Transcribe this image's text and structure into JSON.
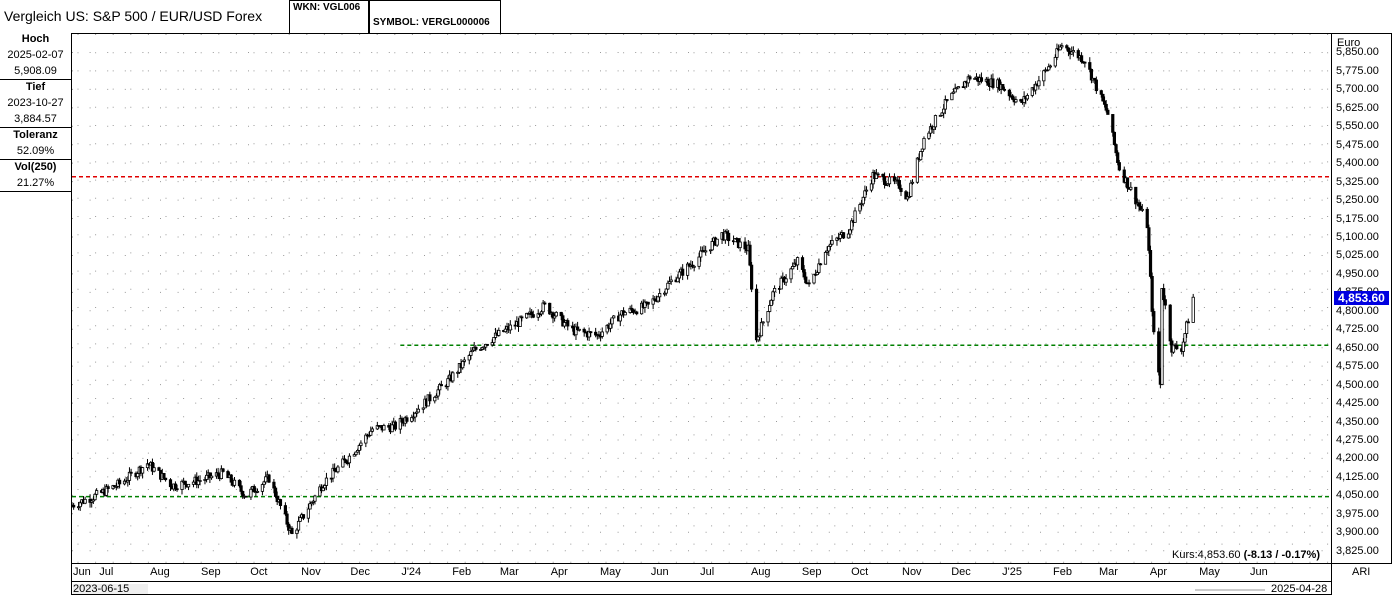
{
  "header": {
    "title": "Vergleich US: S&P 500 / EUR/USD Forex",
    "wkn": "WKN: VGL006",
    "symbol": "SYMBOL: VERGL000006"
  },
  "stats": [
    {
      "label": "Hoch",
      "values": [
        "2025-02-07",
        "5,908.09"
      ]
    },
    {
      "label": "Tief",
      "values": [
        "2023-10-27",
        "3,884.57"
      ]
    },
    {
      "label": "Toleranz",
      "values": [
        "52.09%"
      ]
    },
    {
      "label": "Vol(250)",
      "values": [
        "21.27%"
      ]
    }
  ],
  "footer": {
    "kurs_text": "Kurs:4,853.60 ",
    "kurs_change": "(-8.13 / -0.17%)",
    "start_date": "2023-06-15",
    "end_date": "2025-04-28",
    "ari_label": "ARI"
  },
  "chart_data": {
    "type": "candlestick",
    "yunit": "Euro",
    "ylim": [
      3775,
      5925
    ],
    "yticks": [
      3825,
      3900,
      3975,
      4050,
      4125,
      4200,
      4275,
      4350,
      4425,
      4500,
      4575,
      4650,
      4725,
      4800,
      4875,
      4950,
      5025,
      5100,
      5175,
      5250,
      5325,
      5400,
      5475,
      5550,
      5625,
      5700,
      5775,
      5850
    ],
    "ytick_labels": [
      "3,825.00",
      "3,900.00",
      "3,975.00",
      "4,050.00",
      "4,125.00",
      "4,200.00",
      "4,275.00",
      "4,350.00",
      "4,425.00",
      "4,500.00",
      "4,575.00",
      "4,650.00",
      "4,725.00",
      "4,800.00",
      "4,875.00",
      "4,950.00",
      "5,025.00",
      "5,100.00",
      "5,175.00",
      "5,250.00",
      "5,325.00",
      "5,400.00",
      "5,475.00",
      "5,550.00",
      "5,625.00",
      "5,700.00",
      "5,775.00",
      "5,850.00"
    ],
    "xlim": [
      "2023-06-15",
      "2025-06-15"
    ],
    "month_labels": [
      "Jun",
      "Jul",
      "Aug",
      "Sep",
      "Oct",
      "Nov",
      "Dec",
      "J'24",
      "Feb",
      "Mar",
      "Apr",
      "May",
      "Jun",
      "Jul",
      "Aug",
      "Sep",
      "Oct",
      "Nov",
      "Dec",
      "J'25",
      "Feb",
      "Mar",
      "Apr",
      "May",
      "Jun"
    ],
    "month_dates": [
      "2023-06-15",
      "2023-07-01",
      "2023-08-01",
      "2023-09-01",
      "2023-10-01",
      "2023-11-01",
      "2023-12-01",
      "2024-01-01",
      "2024-02-01",
      "2024-03-01",
      "2024-04-01",
      "2024-05-01",
      "2024-06-01",
      "2024-07-01",
      "2024-08-01",
      "2024-09-01",
      "2024-10-01",
      "2024-11-01",
      "2024-12-01",
      "2025-01-01",
      "2025-02-01",
      "2025-03-01",
      "2025-04-01",
      "2025-05-01",
      "2025-06-01"
    ],
    "reference_lines": [
      {
        "value": 5345,
        "color": "#e00000"
      },
      {
        "value": 4660,
        "color": "#008000",
        "from": "2024-01-01"
      },
      {
        "value": 4045,
        "color": "#008000"
      }
    ],
    "last_price": 4853.6,
    "last_price_label": "4,853.60",
    "series": [
      {
        "x": [
          "2023-06-15",
          "2023-06-30",
          "2023-07-15",
          "2023-07-31",
          "2023-08-15",
          "2023-08-31",
          "2023-09-15",
          "2023-09-29",
          "2023-10-13",
          "2023-10-27",
          "2023-11-15",
          "2023-11-30",
          "2023-12-15",
          "2023-12-29",
          "2024-01-15",
          "2024-01-31",
          "2024-02-15",
          "2024-02-29",
          "2024-03-15",
          "2024-03-29",
          "2024-04-15",
          "2024-04-30",
          "2024-05-15",
          "2024-05-31",
          "2024-06-14",
          "2024-06-28",
          "2024-07-15",
          "2024-07-31",
          "2024-08-05",
          "2024-08-15",
          "2024-08-30",
          "2024-09-06",
          "2024-09-16",
          "2024-09-30",
          "2024-10-15",
          "2024-10-31",
          "2024-11-05",
          "2024-11-15",
          "2024-11-29",
          "2024-12-13",
          "2024-12-31",
          "2025-01-13",
          "2025-01-31",
          "2025-02-07",
          "2025-02-21",
          "2025-03-07",
          "2025-03-14",
          "2025-03-25",
          "2025-03-31",
          "2025-04-04",
          "2025-04-08",
          "2025-04-09",
          "2025-04-15",
          "2025-04-21",
          "2025-04-28"
        ],
        "y": [
          4010,
          4050,
          4100,
          4180,
          4090,
          4110,
          4140,
          4050,
          4120,
          3890,
          4100,
          4200,
          4320,
          4330,
          4420,
          4520,
          4640,
          4700,
          4760,
          4820,
          4720,
          4700,
          4790,
          4820,
          4920,
          5000,
          5110,
          5050,
          4680,
          4870,
          5000,
          4900,
          5050,
          5130,
          5350,
          5310,
          5260,
          5500,
          5650,
          5750,
          5720,
          5640,
          5800,
          5880,
          5820,
          5600,
          5380,
          5240,
          5150,
          4700,
          4500,
          4900,
          4650,
          4650,
          4853.6
        ]
      }
    ]
  }
}
